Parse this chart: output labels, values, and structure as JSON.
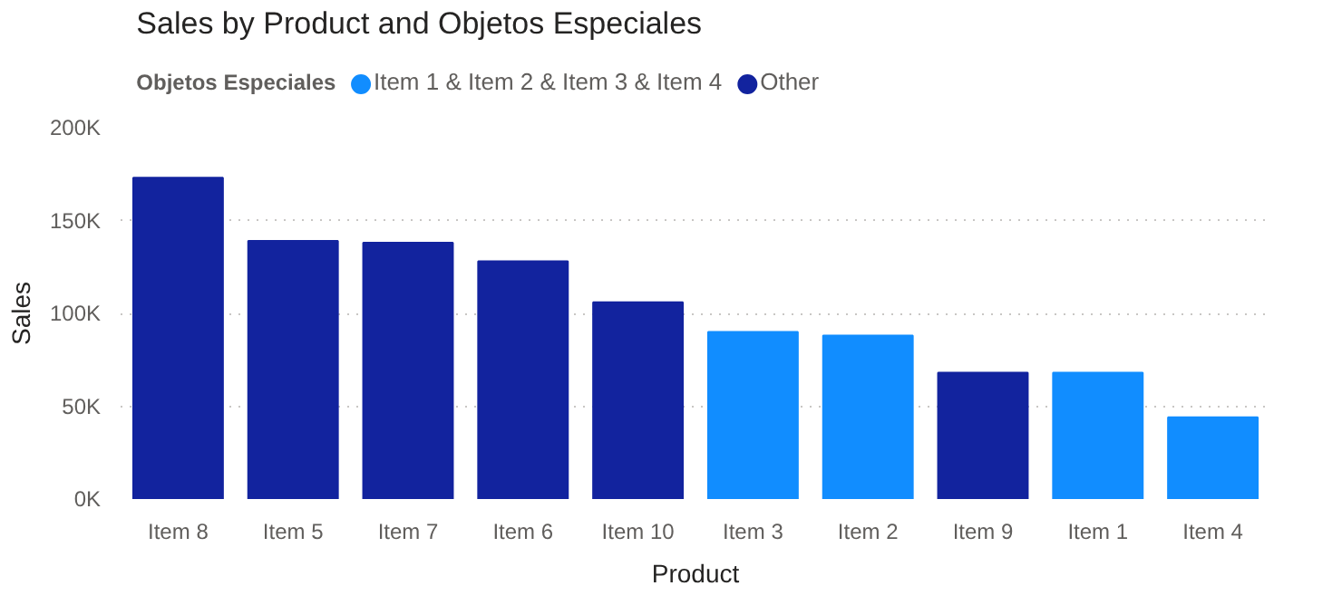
{
  "chart_data": {
    "type": "bar",
    "title": "Sales by Product and Objetos Especiales",
    "xlabel": "Product",
    "ylabel": "Sales",
    "legend_title": "Objetos Especiales",
    "legend": "top left",
    "grid": "y",
    "categories": [
      "Item 8",
      "Item 5",
      "Item 7",
      "Item 6",
      "Item 10",
      "Item 3",
      "Item 2",
      "Item 9",
      "Item 1",
      "Item 4"
    ],
    "series": [
      {
        "name": "Item 1 & Item 2 & Item 3 & Item 4",
        "color": "#118dff",
        "values": [
          null,
          null,
          null,
          null,
          null,
          90000,
          88000,
          null,
          68000,
          44000
        ]
      },
      {
        "name": "Other",
        "color": "#12239e",
        "values": [
          173000,
          139000,
          138000,
          128000,
          106000,
          null,
          null,
          68000,
          null,
          null
        ]
      }
    ],
    "ylim": [
      0,
      200000
    ],
    "yticks": [
      {
        "value": 0,
        "label": "0K"
      },
      {
        "value": 50000,
        "label": "50K"
      },
      {
        "value": 100000,
        "label": "100K"
      },
      {
        "value": 150000,
        "label": "150K"
      },
      {
        "value": 200000,
        "label": "200K"
      }
    ]
  }
}
